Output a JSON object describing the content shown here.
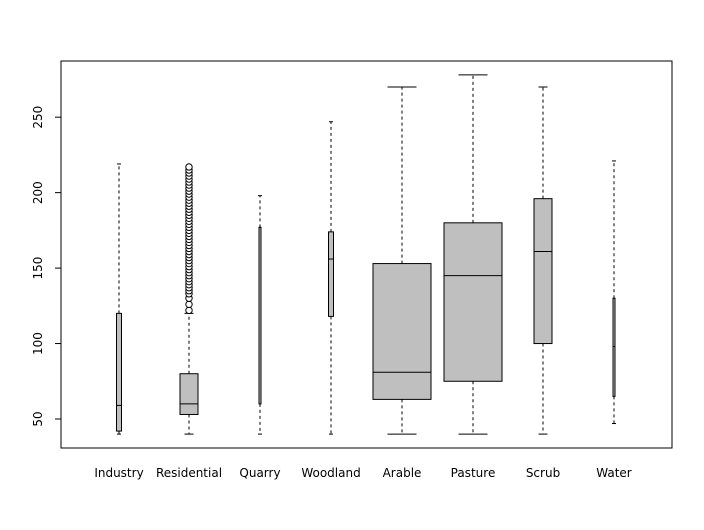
{
  "chart_data": {
    "type": "boxplot",
    "title": "",
    "xlabel": "",
    "ylabel": "",
    "ylim": [
      30,
      285
    ],
    "yticks": [
      50,
      100,
      150,
      200,
      250
    ],
    "grid": false,
    "box_fill": "#c0bfc0",
    "categories": [
      "Industry",
      "Residential",
      "Quarry",
      "Woodland",
      "Arable",
      "Pasture",
      "Scrub",
      "Water"
    ],
    "boxes": [
      {
        "category": "Industry",
        "whisker_low": 40,
        "q1": 42,
        "median": 59,
        "q3": 120,
        "whisker_high": 219,
        "width": "narrow",
        "outliers": []
      },
      {
        "category": "Residential",
        "whisker_low": 40,
        "q1": 53,
        "median": 60,
        "q3": 80,
        "whisker_high": 120,
        "width": "medium",
        "outliers": [
          122,
          126,
          130,
          133,
          135,
          137,
          139,
          141,
          143,
          145,
          147,
          149,
          151,
          153,
          155,
          157,
          159,
          161,
          163,
          165,
          167,
          169,
          171,
          173,
          175,
          177,
          179,
          181,
          183,
          185,
          187,
          189,
          191,
          193,
          195,
          197,
          199,
          201,
          203,
          205,
          207,
          209,
          211,
          213,
          215,
          217
        ]
      },
      {
        "category": "Quarry",
        "whisker_low": 40,
        "q1": 60,
        "median": 177,
        "q3": 177,
        "whisker_high": 198,
        "width": "very-narrow",
        "outliers": []
      },
      {
        "category": "Woodland",
        "whisker_low": 40,
        "q1": 118,
        "median": 156,
        "q3": 174,
        "whisker_high": 247,
        "width": "narrow",
        "outliers": []
      },
      {
        "category": "Arable",
        "whisker_low": 40,
        "q1": 63,
        "median": 81,
        "q3": 153,
        "whisker_high": 270,
        "width": "wide",
        "outliers": []
      },
      {
        "category": "Pasture",
        "whisker_low": 40,
        "q1": 75,
        "median": 145,
        "q3": 180,
        "whisker_high": 278,
        "width": "wide",
        "outliers": []
      },
      {
        "category": "Scrub",
        "whisker_low": 40,
        "q1": 100,
        "median": 161,
        "q3": 196,
        "whisker_high": 270,
        "width": "medium",
        "outliers": []
      },
      {
        "category": "Water",
        "whisker_low": 47,
        "q1": 65,
        "median": 98,
        "q3": 130,
        "whisker_high": 221,
        "width": "very-narrow",
        "outliers": []
      }
    ]
  }
}
